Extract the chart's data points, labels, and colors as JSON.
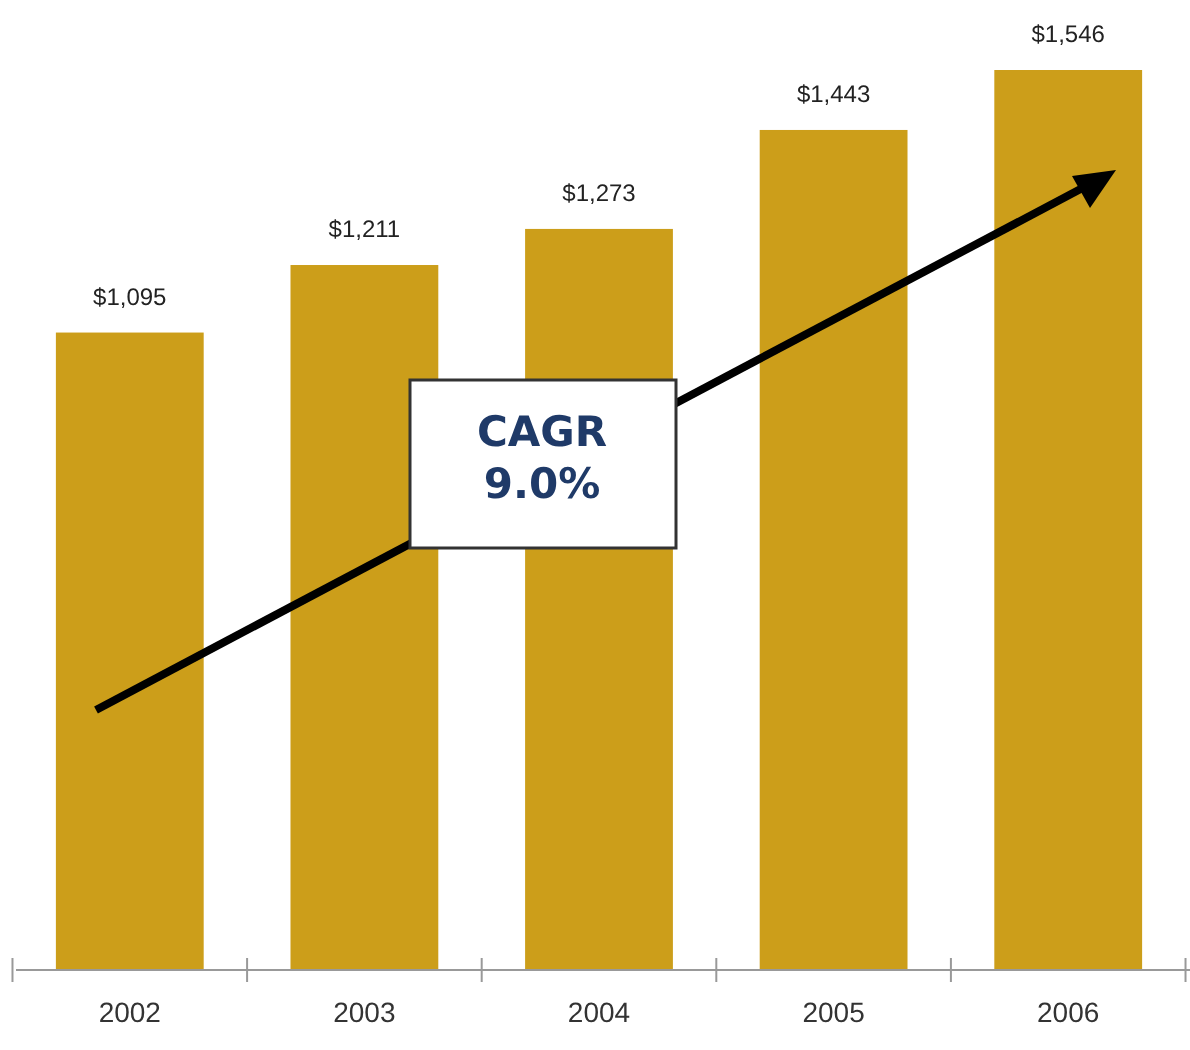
{
  "chart_data": {
    "type": "bar",
    "categories": [
      "2002",
      "2003",
      "2004",
      "2005",
      "2006"
    ],
    "values": [
      1095,
      1211,
      1273,
      1443,
      1546
    ],
    "value_labels": [
      "$1,095",
      "$1,211",
      "$1,273",
      "$1,443",
      "$1,546"
    ],
    "color": "#cc9e1a",
    "annotations": [
      "CAGR\n9.0%"
    ]
  }
}
